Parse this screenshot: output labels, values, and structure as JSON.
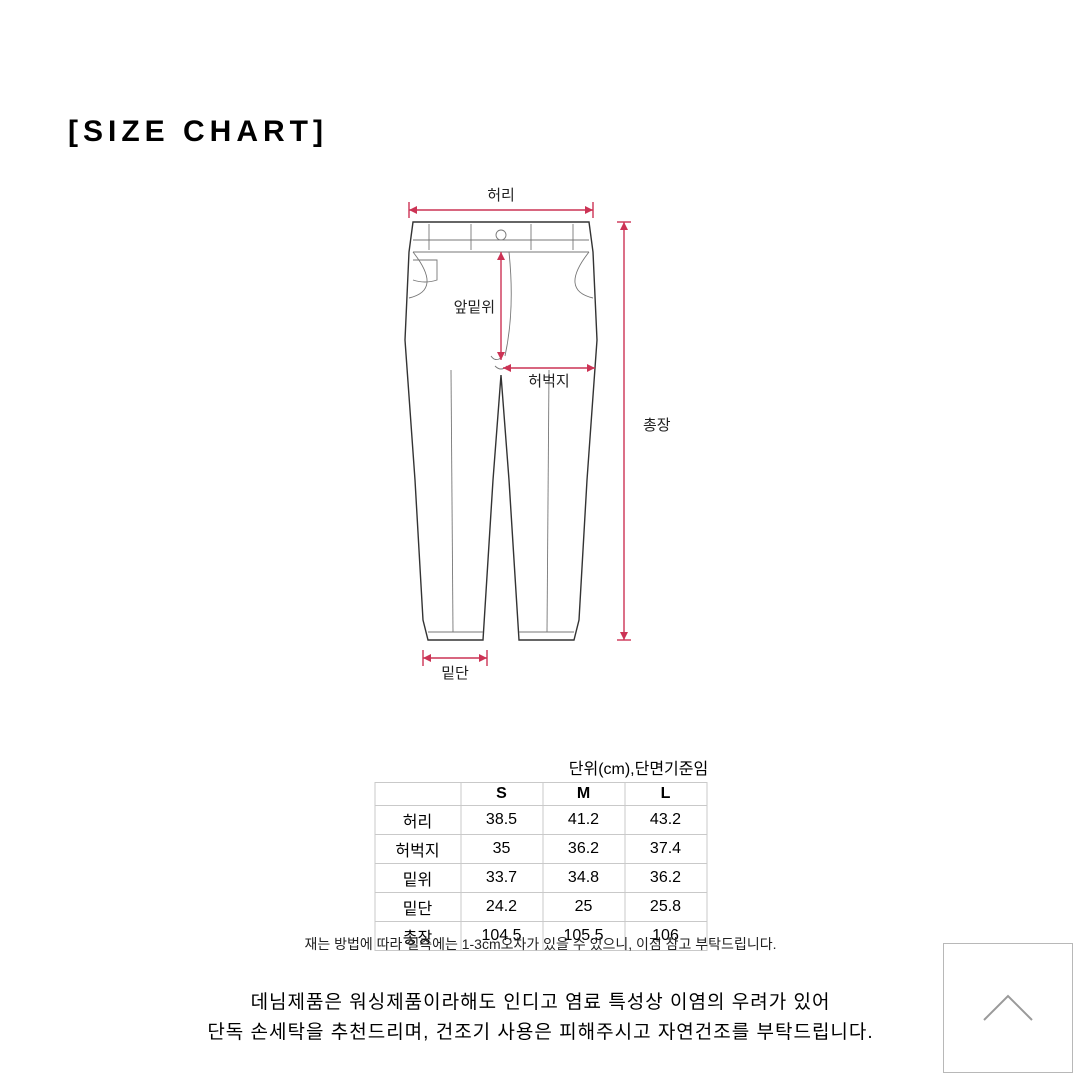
{
  "title": "[SIZE CHART]",
  "diagram": {
    "labels": {
      "waist": "허리",
      "front_rise": "앞밑위",
      "thigh": "허벅지",
      "total_length": "총장",
      "hem": "밑단"
    },
    "colors": {
      "outline": "#333333",
      "inner": "#777777",
      "measure": "#cc3355",
      "bg": "#ffffff"
    },
    "stroke_width_outline": 1.4,
    "stroke_width_inner": 0.9,
    "stroke_width_measure": 1.4
  },
  "unit_note": "단위(cm),단면기준임",
  "table": {
    "columns": [
      "S",
      "M",
      "L"
    ],
    "rows": [
      {
        "label": "허리",
        "values": [
          "38.5",
          "41.2",
          "43.2"
        ]
      },
      {
        "label": "허벅지",
        "values": [
          "35",
          "36.2",
          "37.4"
        ]
      },
      {
        "label": "밑위",
        "values": [
          "33.7",
          "34.8",
          "36.2"
        ]
      },
      {
        "label": "밑단",
        "values": [
          "24.2",
          "25",
          "25.8"
        ]
      },
      {
        "label": "총장",
        "values": [
          "104.5",
          "105.5",
          "106"
        ]
      }
    ]
  },
  "disclaimer": "재는 방법에 따라 실측에는 1-3cm오차가 있을 수 있으니, 이점 참고 부탁드립니다.",
  "care_line1": "데님제품은 워싱제품이라해도 인디고 염료 특성상 이염의 우려가 있어",
  "care_line2": "단독 손세탁을 추천드리며, 건조기 사용은 피해주시고 자연건조를 부탁드립니다."
}
